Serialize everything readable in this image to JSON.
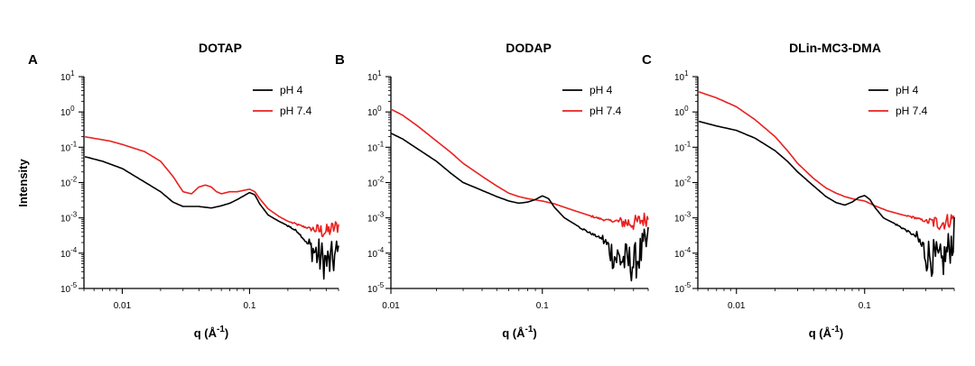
{
  "figure": {
    "ylabel": "Intensity",
    "xlabel_main": "q (Å",
    "xlabel_exp": "-1",
    "xlabel_close": ")"
  },
  "colors": {
    "ph4": "#000000",
    "ph74": "#e8211f"
  },
  "chart_data": [
    {
      "type": "line",
      "panel": "A",
      "title": "DOTAP",
      "xscale": "log",
      "yscale": "log",
      "xlim": [
        0.005,
        0.5
      ],
      "ylim": [
        1e-05,
        10
      ],
      "xticks": [
        0.01,
        0.1
      ],
      "xtick_labels": [
        "0.01",
        "0.1"
      ],
      "yticks": [
        1e-05,
        0.0001,
        0.001,
        0.01,
        0.1,
        1,
        10
      ],
      "ytick_labels": [
        [
          "10",
          "-5"
        ],
        [
          "10",
          "-4"
        ],
        [
          "10",
          "-3"
        ],
        [
          "10",
          "-2"
        ],
        [
          "10",
          "-1"
        ],
        [
          "10",
          "0"
        ],
        [
          "10",
          "1"
        ]
      ],
      "legend": "top-right",
      "series": [
        {
          "name": "pH 4",
          "color": "#000000",
          "noisy_from": 0.28,
          "points": [
            [
              0.005,
              0.055
            ],
            [
              0.007,
              0.04
            ],
            [
              0.01,
              0.025
            ],
            [
              0.014,
              0.012
            ],
            [
              0.02,
              0.0055
            ],
            [
              0.025,
              0.0028
            ],
            [
              0.03,
              0.0021
            ],
            [
              0.04,
              0.0021
            ],
            [
              0.05,
              0.0019
            ],
            [
              0.06,
              0.0022
            ],
            [
              0.07,
              0.0026
            ],
            [
              0.08,
              0.0033
            ],
            [
              0.09,
              0.0042
            ],
            [
              0.1,
              0.0052
            ],
            [
              0.11,
              0.0045
            ],
            [
              0.12,
              0.0025
            ],
            [
              0.14,
              0.0012
            ],
            [
              0.17,
              0.0008
            ],
            [
              0.2,
              0.0006
            ],
            [
              0.24,
              0.0004
            ],
            [
              0.28,
              0.0002
            ],
            [
              0.35,
              8e-05
            ],
            [
              0.42,
              5e-05
            ],
            [
              0.5,
              0.0001
            ]
          ]
        },
        {
          "name": "pH 7.4",
          "color": "#e8211f",
          "noisy_from": 0.3,
          "points": [
            [
              0.005,
              0.2
            ],
            [
              0.008,
              0.15
            ],
            [
              0.01,
              0.12
            ],
            [
              0.015,
              0.075
            ],
            [
              0.02,
              0.04
            ],
            [
              0.025,
              0.015
            ],
            [
              0.03,
              0.0055
            ],
            [
              0.035,
              0.0048
            ],
            [
              0.04,
              0.0075
            ],
            [
              0.045,
              0.0085
            ],
            [
              0.05,
              0.0075
            ],
            [
              0.055,
              0.0055
            ],
            [
              0.06,
              0.0048
            ],
            [
              0.07,
              0.0055
            ],
            [
              0.08,
              0.0055
            ],
            [
              0.09,
              0.006
            ],
            [
              0.1,
              0.0065
            ],
            [
              0.11,
              0.0055
            ],
            [
              0.12,
              0.0035
            ],
            [
              0.14,
              0.0018
            ],
            [
              0.17,
              0.0011
            ],
            [
              0.2,
              0.0008
            ],
            [
              0.25,
              0.0006
            ],
            [
              0.3,
              0.0005
            ],
            [
              0.4,
              0.0004
            ],
            [
              0.5,
              0.0006
            ]
          ]
        }
      ]
    },
    {
      "type": "line",
      "panel": "B",
      "title": "DODAP",
      "xscale": "log",
      "yscale": "log",
      "xlim": [
        0.01,
        0.5
      ],
      "ylim": [
        1e-05,
        10
      ],
      "xticks": [
        0.01,
        0.1
      ],
      "xtick_labels": [
        "0.01",
        "0.1"
      ],
      "yticks": [
        1e-05,
        0.0001,
        0.001,
        0.01,
        0.1,
        1,
        10
      ],
      "ytick_labels": [
        [
          "10",
          "-5"
        ],
        [
          "10",
          "-4"
        ],
        [
          "10",
          "-3"
        ],
        [
          "10",
          "-2"
        ],
        [
          "10",
          "-1"
        ],
        [
          "10",
          "0"
        ],
        [
          "10",
          "1"
        ]
      ],
      "legend": "top-right",
      "series": [
        {
          "name": "pH 4",
          "color": "#000000",
          "noisy_from": 0.25,
          "points": [
            [
              0.01,
              0.25
            ],
            [
              0.012,
              0.17
            ],
            [
              0.015,
              0.09
            ],
            [
              0.02,
              0.04
            ],
            [
              0.025,
              0.018
            ],
            [
              0.03,
              0.01
            ],
            [
              0.04,
              0.006
            ],
            [
              0.05,
              0.004
            ],
            [
              0.06,
              0.003
            ],
            [
              0.07,
              0.0026
            ],
            [
              0.08,
              0.0028
            ],
            [
              0.09,
              0.0033
            ],
            [
              0.1,
              0.0042
            ],
            [
              0.11,
              0.0035
            ],
            [
              0.12,
              0.002
            ],
            [
              0.14,
              0.001
            ],
            [
              0.17,
              0.0006
            ],
            [
              0.2,
              0.0004
            ],
            [
              0.25,
              0.00025
            ],
            [
              0.3,
              8e-05
            ],
            [
              0.4,
              5e-05
            ],
            [
              0.5,
              0.0002
            ]
          ]
        },
        {
          "name": "pH 7.4",
          "color": "#e8211f",
          "noisy_from": 0.3,
          "points": [
            [
              0.01,
              1.2
            ],
            [
              0.012,
              0.8
            ],
            [
              0.015,
              0.4
            ],
            [
              0.02,
              0.15
            ],
            [
              0.025,
              0.07
            ],
            [
              0.03,
              0.035
            ],
            [
              0.04,
              0.015
            ],
            [
              0.05,
              0.008
            ],
            [
              0.06,
              0.005
            ],
            [
              0.07,
              0.004
            ],
            [
              0.08,
              0.0035
            ],
            [
              0.1,
              0.003
            ],
            [
              0.12,
              0.0025
            ],
            [
              0.15,
              0.0018
            ],
            [
              0.2,
              0.0012
            ],
            [
              0.25,
              0.0009
            ],
            [
              0.3,
              0.0008
            ],
            [
              0.4,
              0.0007
            ],
            [
              0.5,
              0.001
            ]
          ]
        }
      ]
    },
    {
      "type": "line",
      "panel": "C",
      "title": "DLin-MC3-DMA",
      "xscale": "log",
      "yscale": "log",
      "xlim": [
        0.005,
        0.5
      ],
      "ylim": [
        1e-05,
        10
      ],
      "xticks": [
        0.01,
        0.1
      ],
      "xtick_labels": [
        "0.01",
        "0.1"
      ],
      "yticks": [
        1e-05,
        0.0001,
        0.001,
        0.01,
        0.1,
        1,
        10
      ],
      "ytick_labels": [
        [
          "10",
          "-5"
        ],
        [
          "10",
          "-4"
        ],
        [
          "10",
          "-3"
        ],
        [
          "10",
          "-2"
        ],
        [
          "10",
          "-1"
        ],
        [
          "10",
          "0"
        ],
        [
          "10",
          "1"
        ]
      ],
      "legend": "top-right",
      "series": [
        {
          "name": "pH 4",
          "color": "#000000",
          "noisy_from": 0.25,
          "points": [
            [
              0.005,
              0.55
            ],
            [
              0.007,
              0.4
            ],
            [
              0.01,
              0.3
            ],
            [
              0.014,
              0.18
            ],
            [
              0.02,
              0.08
            ],
            [
              0.025,
              0.04
            ],
            [
              0.03,
              0.02
            ],
            [
              0.04,
              0.008
            ],
            [
              0.05,
              0.004
            ],
            [
              0.06,
              0.0027
            ],
            [
              0.07,
              0.0023
            ],
            [
              0.08,
              0.0028
            ],
            [
              0.09,
              0.0038
            ],
            [
              0.1,
              0.0043
            ],
            [
              0.11,
              0.0033
            ],
            [
              0.12,
              0.002
            ],
            [
              0.14,
              0.001
            ],
            [
              0.17,
              0.0007
            ],
            [
              0.2,
              0.0005
            ],
            [
              0.25,
              0.0003
            ],
            [
              0.3,
              0.0001
            ],
            [
              0.4,
              5e-05
            ],
            [
              0.5,
              0.0003
            ]
          ]
        },
        {
          "name": "pH 7.4",
          "color": "#e8211f",
          "noisy_from": 0.3,
          "points": [
            [
              0.005,
              3.8
            ],
            [
              0.007,
              2.5
            ],
            [
              0.01,
              1.4
            ],
            [
              0.014,
              0.6
            ],
            [
              0.02,
              0.2
            ],
            [
              0.025,
              0.08
            ],
            [
              0.03,
              0.035
            ],
            [
              0.04,
              0.013
            ],
            [
              0.05,
              0.007
            ],
            [
              0.06,
              0.005
            ],
            [
              0.07,
              0.004
            ],
            [
              0.08,
              0.0035
            ],
            [
              0.1,
              0.003
            ],
            [
              0.12,
              0.0022
            ],
            [
              0.15,
              0.0016
            ],
            [
              0.2,
              0.0012
            ],
            [
              0.25,
              0.001
            ],
            [
              0.3,
              0.0008
            ],
            [
              0.4,
              0.0007
            ],
            [
              0.5,
              0.001
            ]
          ]
        }
      ]
    }
  ]
}
